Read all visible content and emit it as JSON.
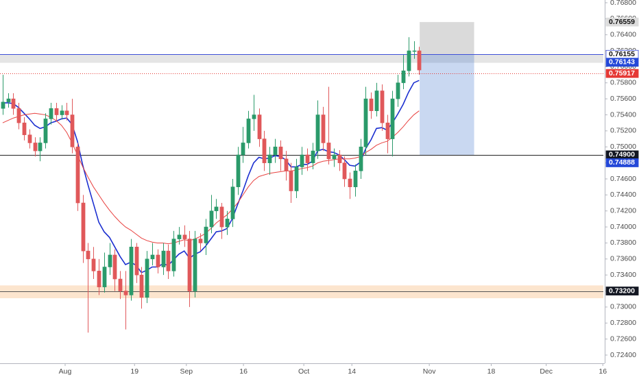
{
  "chart_data": {
    "type": "candlestick",
    "up_color": "#2b9a6a",
    "down_color": "#e0585a",
    "xlim": [
      -0.5,
      112.5
    ],
    "ylim": [
      0.724,
      0.768
    ],
    "xticks": [
      {
        "value": 11.7,
        "label": "Aug"
      },
      {
        "value": 24.7,
        "label": "19"
      },
      {
        "value": 34.4,
        "label": "Sep"
      },
      {
        "value": 45.1,
        "label": "16"
      },
      {
        "value": 56.4,
        "label": "Oct"
      },
      {
        "value": 65.4,
        "label": "14"
      },
      {
        "value": 79.9,
        "label": "Nov"
      },
      {
        "value": 91.5,
        "label": "18"
      },
      {
        "value": 101.8,
        "label": "Dec"
      },
      {
        "value": 112.4,
        "label": "16"
      }
    ],
    "yticks": [
      {
        "value": 0.768,
        "label": "0.76800"
      },
      {
        "value": 0.766,
        "label": "0.76600"
      },
      {
        "value": 0.764,
        "label": "0.76400"
      },
      {
        "value": 0.762,
        "label": "0.76200"
      },
      {
        "value": 0.76,
        "label": "0.76000"
      },
      {
        "value": 0.758,
        "label": "0.75800"
      },
      {
        "value": 0.756,
        "label": "0.75600"
      },
      {
        "value": 0.754,
        "label": "0.75400"
      },
      {
        "value": 0.752,
        "label": "0.75200"
      },
      {
        "value": 0.75,
        "label": "0.75000"
      },
      {
        "value": 0.748,
        "label": "0.74800"
      },
      {
        "value": 0.746,
        "label": "0.74600"
      },
      {
        "value": 0.744,
        "label": "0.74400"
      },
      {
        "value": 0.742,
        "label": "0.74200"
      },
      {
        "value": 0.74,
        "label": "0.74000"
      },
      {
        "value": 0.738,
        "label": "0.73800"
      },
      {
        "value": 0.736,
        "label": "0.73600"
      },
      {
        "value": 0.734,
        "label": "0.73400"
      },
      {
        "value": 0.732,
        "label": "0.73200"
      },
      {
        "value": 0.73,
        "label": "0.73000"
      },
      {
        "value": 0.728,
        "label": "0.72800"
      },
      {
        "value": 0.726,
        "label": "0.72600"
      },
      {
        "value": 0.724,
        "label": "0.72400"
      }
    ],
    "open": [
      0.7548,
      0.7556,
      0.756,
      0.7548,
      0.753,
      0.7515,
      0.7505,
      0.7495,
      0.7505,
      0.7535,
      0.7548,
      0.754,
      0.7545,
      0.754,
      0.75,
      0.743,
      0.737,
      0.736,
      0.7345,
      0.7325,
      0.735,
      0.7365,
      0.7335,
      0.732,
      0.7315,
      0.7375,
      0.734,
      0.7312,
      0.736,
      0.7365,
      0.735,
      0.737,
      0.7345,
      0.7385,
      0.739,
      0.7385,
      0.732,
      0.7385,
      0.738,
      0.74,
      0.742,
      0.7425,
      0.74,
      0.741,
      0.745,
      0.749,
      0.7505,
      0.7535,
      0.754,
      0.751,
      0.748,
      0.749,
      0.75,
      0.7485,
      0.747,
      0.7445,
      0.7475,
      0.749,
      0.748,
      0.7495,
      0.754,
      0.7505,
      0.7485,
      0.749,
      0.748,
      0.746,
      0.745,
      0.747,
      0.75,
      0.756,
      0.7545,
      0.757,
      0.753,
      0.751,
      0.756,
      0.758,
      0.7595,
      0.762,
      0.762
    ],
    "high": [
      0.759,
      0.7567,
      0.7567,
      0.7555,
      0.7537,
      0.7522,
      0.7512,
      0.7512,
      0.7542,
      0.7555,
      0.7555,
      0.7552,
      0.7555,
      0.756,
      0.7505,
      0.744,
      0.738,
      0.7375,
      0.736,
      0.7368,
      0.738,
      0.7372,
      0.7345,
      0.7345,
      0.7385,
      0.738,
      0.735,
      0.737,
      0.738,
      0.7372,
      0.738,
      0.7378,
      0.7395,
      0.74,
      0.7402,
      0.7395,
      0.7395,
      0.7392,
      0.741,
      0.744,
      0.7435,
      0.743,
      0.742,
      0.746,
      0.75,
      0.7525,
      0.7545,
      0.7565,
      0.7548,
      0.752,
      0.75,
      0.751,
      0.7508,
      0.7495,
      0.748,
      0.7485,
      0.75,
      0.7498,
      0.7505,
      0.7558,
      0.755,
      0.7575,
      0.7498,
      0.7496,
      0.7488,
      0.7468,
      0.7478,
      0.751,
      0.7575,
      0.7568,
      0.758,
      0.7578,
      0.754,
      0.757,
      0.759,
      0.7615,
      0.7637,
      0.7632,
      0.7625
    ],
    "low": [
      0.754,
      0.7549,
      0.754,
      0.7522,
      0.7508,
      0.7498,
      0.7488,
      0.7482,
      0.7498,
      0.7528,
      0.7532,
      0.7534,
      0.7533,
      0.7492,
      0.742,
      0.7355,
      0.7268,
      0.7335,
      0.7315,
      0.7318,
      0.734,
      0.732,
      0.731,
      0.7272,
      0.7308,
      0.733,
      0.7298,
      0.7305,
      0.7352,
      0.7342,
      0.734,
      0.7335,
      0.7338,
      0.7378,
      0.7375,
      0.73,
      0.7312,
      0.737,
      0.7365,
      0.7392,
      0.741,
      0.7385,
      0.739,
      0.74,
      0.744,
      0.748,
      0.7498,
      0.752,
      0.75,
      0.747,
      0.7465,
      0.748,
      0.747,
      0.7458,
      0.743,
      0.7436,
      0.7465,
      0.747,
      0.7472,
      0.7485,
      0.7495,
      0.7478,
      0.7475,
      0.747,
      0.745,
      0.7435,
      0.7438,
      0.746,
      0.749,
      0.7535,
      0.7538,
      0.752,
      0.7492,
      0.7488,
      0.755,
      0.7572,
      0.7588,
      0.761,
      0.759
    ],
    "close": [
      0.7556,
      0.756,
      0.7548,
      0.753,
      0.7515,
      0.7505,
      0.7495,
      0.7505,
      0.7535,
      0.7548,
      0.754,
      0.7545,
      0.754,
      0.75,
      0.743,
      0.737,
      0.736,
      0.7345,
      0.7325,
      0.735,
      0.7365,
      0.7335,
      0.732,
      0.7315,
      0.7375,
      0.734,
      0.7312,
      0.736,
      0.7365,
      0.735,
      0.737,
      0.7345,
      0.7385,
      0.739,
      0.7385,
      0.732,
      0.7385,
      0.738,
      0.74,
      0.742,
      0.7425,
      0.74,
      0.741,
      0.745,
      0.749,
      0.7505,
      0.7535,
      0.754,
      0.751,
      0.748,
      0.749,
      0.75,
      0.7485,
      0.747,
      0.7445,
      0.7475,
      0.749,
      0.748,
      0.7495,
      0.754,
      0.7505,
      0.7485,
      0.749,
      0.748,
      0.746,
      0.745,
      0.747,
      0.75,
      0.756,
      0.7545,
      0.757,
      0.753,
      0.751,
      0.756,
      0.758,
      0.7595,
      0.762,
      0.762,
      0.7596
    ],
    "series": [
      {
        "color": "#1b2fd0",
        "values": [
          0.7555,
          0.7555,
          0.7554,
          0.7549,
          0.7542,
          0.7535,
          0.7527,
          0.7523,
          0.7525,
          0.753,
          0.7532,
          0.7535,
          0.7536,
          0.7528,
          0.7507,
          0.7477,
          0.7452,
          0.7429,
          0.7406,
          0.7394,
          0.7387,
          0.7375,
          0.7363,
          0.7353,
          0.7356,
          0.7352,
          0.7343,
          0.7346,
          0.735,
          0.735,
          0.7354,
          0.7352,
          0.7359,
          0.7366,
          0.737,
          0.7361,
          0.7366,
          0.7369,
          0.7376,
          0.7385,
          0.7394,
          0.7395,
          0.7398,
          0.741,
          0.7428,
          0.7445,
          0.7464,
          0.748,
          0.7487,
          0.7485,
          0.7486,
          0.7489,
          0.7488,
          0.7484,
          0.7475,
          0.7475,
          0.7478,
          0.7478,
          0.7482,
          0.7495,
          0.7497,
          0.7494,
          0.7493,
          0.749,
          0.7484,
          0.7477,
          0.7476,
          0.7481,
          0.7498,
          0.7509,
          0.7523,
          0.7524,
          0.7521,
          0.753,
          0.7541,
          0.7553,
          0.7568,
          0.758,
          0.7583
        ]
      },
      {
        "color": "#e8413f",
        "values": [
          0.753,
          0.7533,
          0.7536,
          0.7538,
          0.754,
          0.7541,
          0.7542,
          0.7541,
          0.754,
          0.7537,
          0.7533,
          0.7527,
          0.7518,
          0.7505,
          0.749,
          0.7475,
          0.7462,
          0.745,
          0.744,
          0.743,
          0.7421,
          0.7413,
          0.7406,
          0.74,
          0.7396,
          0.7391,
          0.7386,
          0.7383,
          0.7381,
          0.738,
          0.738,
          0.7379,
          0.738,
          0.7382,
          0.7384,
          0.7383,
          0.7385,
          0.7388,
          0.7392,
          0.7398,
          0.7405,
          0.741,
          0.7415,
          0.7422,
          0.743,
          0.744,
          0.745,
          0.7458,
          0.7463,
          0.7465,
          0.7467,
          0.7468,
          0.7469,
          0.747,
          0.747,
          0.7471,
          0.7473,
          0.7474,
          0.7476,
          0.748,
          0.7482,
          0.7483,
          0.7484,
          0.7485,
          0.7485,
          0.7485,
          0.7486,
          0.7488,
          0.7493,
          0.7497,
          0.7502,
          0.7505,
          0.7507,
          0.7512,
          0.7518,
          0.7525,
          0.7533,
          0.754,
          0.7545
        ]
      }
    ],
    "zones": [
      {
        "from": 0.7605,
        "to": 0.7615,
        "color": "rgba(170,170,170,0.3)"
      },
      {
        "from": 0.7311,
        "to": 0.7327,
        "color": "rgba(245,160,80,0.28)"
      }
    ],
    "levels": [
      {
        "value": 0.76155,
        "color": "#3d4fd8",
        "style": "solid"
      },
      {
        "value": 0.75917,
        "color": "#e53935",
        "style": "dotted"
      },
      {
        "value": 0.749,
        "color": "#222222",
        "style": "solid"
      },
      {
        "value": 0.732,
        "color": "#555555",
        "style": "solid"
      }
    ],
    "position": {
      "x": [
        78.1,
        88.3
      ],
      "stop": 0.76559,
      "entry": 0.76155,
      "target": 0.749,
      "stop_color": "rgba(150,150,150,0.35)",
      "target_color": "rgba(41,98,200,0.25)"
    },
    "tags": [
      {
        "value": 0.76559,
        "bg": "#dcdcdc",
        "fg": "#111111"
      },
      {
        "value": 0.76155,
        "bg": "#ffffff",
        "fg": "#111111"
      },
      {
        "value": 0.76143,
        "bg": "#2448d8",
        "fg": "#ffffff"
      },
      {
        "value": 0.75917,
        "bg": "#e53935",
        "fg": "#ffffff"
      },
      {
        "value": 0.749,
        "label": "0.74900",
        "bg": "#131722",
        "fg": "#ffffff"
      },
      {
        "value": 0.74888,
        "bg": "#2448d8",
        "fg": "#ffffff"
      },
      {
        "value": 0.732,
        "label": "0.73200",
        "bg": "#131722",
        "fg": "#ffffff"
      }
    ]
  }
}
